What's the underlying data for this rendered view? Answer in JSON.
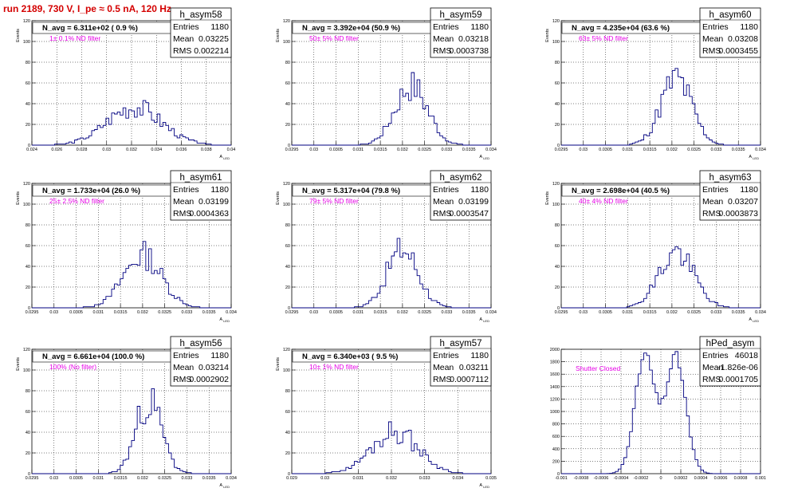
{
  "page": {
    "title": "run 2189,   730 V, I_pe ≈ 0.5 nA, 120 Hz"
  },
  "chart_data": [
    {
      "type": "histogram",
      "name": "h_asym58",
      "ylabel": "Events",
      "xlabel": "A_LED",
      "xlim": [
        0.024,
        0.04
      ],
      "ylim": [
        0,
        120
      ],
      "xticks": [
        "0.024",
        "0.026",
        "0.028",
        "0.03",
        "0.032",
        "0.034",
        "0.036",
        "0.038",
        "0.04"
      ],
      "yticks": [
        "0",
        "20",
        "40",
        "60",
        "80",
        "100",
        "120"
      ],
      "navg": "N_avg = 6.311e+02 ( 0.9 %)",
      "note": "1± 0.1% ND filter",
      "stats": {
        "entries": "1180",
        "mean": "0.03225",
        "rms": "0.002214"
      },
      "dist": {
        "mu": 0.0322,
        "sigma": 0.0022,
        "peak": 38,
        "seed": 3
      }
    },
    {
      "type": "histogram",
      "name": "h_asym59",
      "ylabel": "Events",
      "xlabel": "A_LED",
      "xlim": [
        0.0295,
        0.034
      ],
      "ylim": [
        0,
        120
      ],
      "xticks": [
        "0.0295",
        "0.03",
        "0.0305",
        "0.031",
        "0.0315",
        "0.032",
        "0.0325",
        "0.033",
        "0.0335",
        "0.034"
      ],
      "yticks": [
        "0",
        "20",
        "40",
        "60",
        "80",
        "100",
        "120"
      ],
      "navg": "N_avg = 3.392e+04 (50.9 %)",
      "note": "50± 5% ND filter",
      "stats": {
        "entries": "1180",
        "mean": "0.03218",
        "rms": "0.0003738"
      },
      "dist": {
        "mu": 0.0322,
        "sigma": 0.00037,
        "peak": 58,
        "seed": 7
      }
    },
    {
      "type": "histogram",
      "name": "h_asym60",
      "ylabel": "Events",
      "xlabel": "A_LED",
      "xlim": [
        0.0295,
        0.034
      ],
      "ylim": [
        0,
        120
      ],
      "xticks": [
        "0.0295",
        "0.03",
        "0.0305",
        "0.031",
        "0.0315",
        "0.032",
        "0.0325",
        "0.033",
        "0.0335",
        "0.034"
      ],
      "yticks": [
        "0",
        "20",
        "40",
        "60",
        "80",
        "100",
        "120"
      ],
      "navg": "N_avg = 4.235e+04 (63.6 %)",
      "note": "63± 5% ND filter",
      "stats": {
        "entries": "1180",
        "mean": "0.03208",
        "rms": "0.0003455"
      },
      "dist": {
        "mu": 0.0321,
        "sigma": 0.00035,
        "peak": 65,
        "seed": 11
      }
    },
    {
      "type": "histogram",
      "name": "h_asym61",
      "ylabel": "Events",
      "xlabel": "A_LED",
      "xlim": [
        0.0295,
        0.034
      ],
      "ylim": [
        0,
        120
      ],
      "xticks": [
        "0.0295",
        "0.03",
        "0.0305",
        "0.031",
        "0.0315",
        "0.032",
        "0.0325",
        "0.033",
        "0.0335",
        "0.034"
      ],
      "yticks": [
        "0",
        "20",
        "40",
        "60",
        "80",
        "100",
        "120"
      ],
      "navg": "N_avg = 1.733e+04 (26.0 %)",
      "note": "25± 2.5% ND filter",
      "stats": {
        "entries": "1180",
        "mean": "0.03199",
        "rms": "0.0004363"
      },
      "dist": {
        "mu": 0.032,
        "sigma": 0.00043,
        "peak": 52,
        "seed": 13
      }
    },
    {
      "type": "histogram",
      "name": "h_asym62",
      "ylabel": "Events",
      "xlabel": "A_LED",
      "xlim": [
        0.0295,
        0.034
      ],
      "ylim": [
        0,
        120
      ],
      "xticks": [
        "0.0295",
        "0.03",
        "0.0305",
        "0.031",
        "0.0315",
        "0.032",
        "0.0325",
        "0.033",
        "0.0335",
        "0.034"
      ],
      "yticks": [
        "0",
        "20",
        "40",
        "60",
        "80",
        "100",
        "120"
      ],
      "navg": "N_avg = 5.317e+04 (79.8 %)",
      "note": "79± 5% ND filter",
      "stats": {
        "entries": "1180",
        "mean": "0.03199",
        "rms": "0.0003547"
      },
      "dist": {
        "mu": 0.032,
        "sigma": 0.00035,
        "peak": 58,
        "seed": 17
      }
    },
    {
      "type": "histogram",
      "name": "h_asym63",
      "ylabel": "Events",
      "xlabel": "A_LED",
      "xlim": [
        0.0295,
        0.034
      ],
      "ylim": [
        0,
        120
      ],
      "xticks": [
        "0.0295",
        "0.03",
        "0.0305",
        "0.031",
        "0.0315",
        "0.032",
        "0.0325",
        "0.033",
        "0.0335",
        "0.034"
      ],
      "yticks": [
        "0",
        "20",
        "40",
        "60",
        "80",
        "100",
        "120"
      ],
      "navg": "N_avg = 2.698e+04 (40.5 %)",
      "note": "40± 4% ND filter",
      "stats": {
        "entries": "1180",
        "mean": "0.03207",
        "rms": "0.0003873"
      },
      "dist": {
        "mu": 0.0321,
        "sigma": 0.00039,
        "peak": 55,
        "seed": 19
      }
    },
    {
      "type": "histogram",
      "name": "h_asym56",
      "ylabel": "Events",
      "xlabel": "A_LED",
      "xlim": [
        0.0295,
        0.034
      ],
      "ylim": [
        0,
        120
      ],
      "xticks": [
        "0.0295",
        "0.03",
        "0.0305",
        "0.031",
        "0.0315",
        "0.032",
        "0.0325",
        "0.033",
        "0.0335",
        "0.034"
      ],
      "yticks": [
        "0",
        "20",
        "40",
        "60",
        "80",
        "100",
        "120"
      ],
      "navg": "N_avg = 6.661e+04 (100.0 %)",
      "note": "100% (No filter)",
      "stats": {
        "entries": "1180",
        "mean": "0.03214",
        "rms": "0.0002902"
      },
      "dist": {
        "mu": 0.03214,
        "sigma": 0.00029,
        "peak": 72,
        "seed": 23
      }
    },
    {
      "type": "histogram",
      "name": "h_asym57",
      "ylabel": "Events",
      "xlabel": "A_LED",
      "xlim": [
        0.029,
        0.035
      ],
      "ylim": [
        0,
        120
      ],
      "xticks": [
        "0.029",
        "0.03",
        "0.031",
        "0.032",
        "0.033",
        "0.034",
        "0.035"
      ],
      "yticks": [
        "0",
        "20",
        "40",
        "60",
        "80",
        "100",
        "120"
      ],
      "navg": "N_avg = 6.340e+03 ( 9.5 %)",
      "note": "10± 1% ND filter",
      "stats": {
        "entries": "1180",
        "mean": "0.03211",
        "rms": "0.0007112"
      },
      "dist": {
        "mu": 0.0321,
        "sigma": 0.0007,
        "peak": 42,
        "seed": 29
      }
    },
    {
      "type": "histogram",
      "name": "hPed_asym",
      "ylabel": "",
      "xlabel": "",
      "xlim": [
        -0.001,
        0.001
      ],
      "ylim": [
        0,
        2000
      ],
      "xticks": [
        "-0.001",
        "-0.0008",
        "-0.0006",
        "-0.0004",
        "-0.0002",
        "0",
        "0.0002",
        "0.0004",
        "0.0006",
        "0.0008",
        "0.001"
      ],
      "yticks": [
        "0",
        "200",
        "400",
        "600",
        "800",
        "1000",
        "1200",
        "1400",
        "1600",
        "1800",
        "2000"
      ],
      "navg": "",
      "note": "Shutter Closed",
      "stats": {
        "entries": "46018",
        "mean": "-1.826e-06",
        "rms": "0.0001705"
      },
      "dist": {
        "bimodal": true,
        "mu1": -0.00016,
        "mu2": 0.00015,
        "sigma": 0.0001,
        "peak1": 1950,
        "peak2": 1920,
        "seed": 31
      }
    }
  ],
  "stats_labels": {
    "entries": "Entries",
    "mean": "Mean",
    "rms": "RMS"
  }
}
